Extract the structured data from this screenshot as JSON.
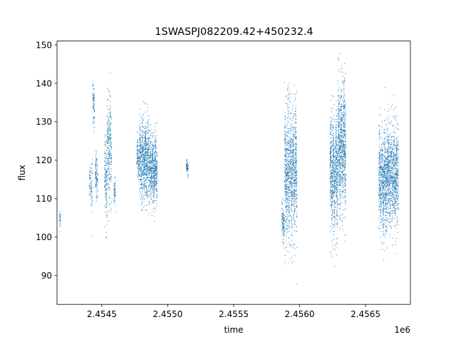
{
  "chart_data": {
    "type": "scatter",
    "title": "1SWASPJ082209.42+450232.4",
    "xlabel": "time",
    "ylabel": "flux",
    "x_offset_label": "1e6",
    "xlim": [
      2454160,
      2456840
    ],
    "ylim": [
      82.5,
      151.0
    ],
    "x_ticks": [
      2454500,
      2455000,
      2455500,
      2456000,
      2456500
    ],
    "x_tick_labels": [
      "2.4545",
      "2.4550",
      "2.4555",
      "2.4560",
      "2.4565"
    ],
    "y_ticks": [
      90,
      100,
      110,
      120,
      130,
      140,
      150
    ],
    "y_tick_labels": [
      "90",
      "100",
      "110",
      "120",
      "130",
      "140",
      "150"
    ],
    "grid": false,
    "point_color": "#1f77b4",
    "clusters": [
      {
        "t0": 2454180,
        "t1": 2454186,
        "center": 104.5,
        "spread": 1.5,
        "n": 40
      },
      {
        "t0": 2454405,
        "t1": 2454430,
        "center": 113.5,
        "spread": 4.0,
        "n": 90
      },
      {
        "t0": 2454430,
        "t1": 2454445,
        "center": 134.5,
        "spread": 4.5,
        "n": 90
      },
      {
        "t0": 2454450,
        "t1": 2454470,
        "center": 116.0,
        "spread": 3.0,
        "n": 120
      },
      {
        "t0": 2454520,
        "t1": 2454540,
        "center": 115.0,
        "spread": 7.0,
        "n": 160
      },
      {
        "t0": 2454540,
        "t1": 2454575,
        "center": 122.5,
        "spread": 7.5,
        "n": 300
      },
      {
        "t0": 2454590,
        "t1": 2454605,
        "center": 111.5,
        "spread": 2.0,
        "n": 60
      },
      {
        "t0": 2454765,
        "t1": 2454785,
        "center": 120.5,
        "spread": 3.0,
        "n": 120
      },
      {
        "t0": 2454785,
        "t1": 2454860,
        "center": 120.0,
        "spread": 6.0,
        "n": 800
      },
      {
        "t0": 2454860,
        "t1": 2454920,
        "center": 117.5,
        "spread": 5.0,
        "n": 600
      },
      {
        "t0": 2455140,
        "t1": 2455155,
        "center": 118.0,
        "spread": 1.0,
        "n": 70
      },
      {
        "t0": 2455865,
        "t1": 2455885,
        "center": 104.0,
        "spread": 3.0,
        "n": 120
      },
      {
        "t0": 2455885,
        "t1": 2455980,
        "center": 117.0,
        "spread": 9.5,
        "n": 1200
      },
      {
        "t0": 2456230,
        "t1": 2456290,
        "center": 116.0,
        "spread": 8.5,
        "n": 800
      },
      {
        "t0": 2456290,
        "t1": 2456350,
        "center": 124.0,
        "spread": 9.5,
        "n": 900
      },
      {
        "t0": 2456600,
        "t1": 2456670,
        "center": 115.0,
        "spread": 7.5,
        "n": 900
      },
      {
        "t0": 2456670,
        "t1": 2456750,
        "center": 116.0,
        "spread": 7.5,
        "n": 900
      }
    ]
  }
}
